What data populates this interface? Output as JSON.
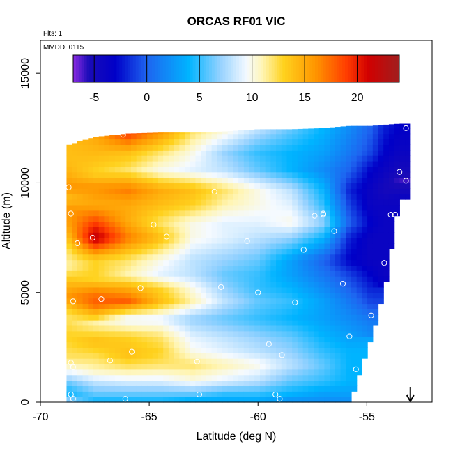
{
  "chart_data": {
    "type": "heatmap",
    "title": "ORCAS RF01 VIC",
    "annotations": {
      "flights": "Flts: 1",
      "date": "MMDD: 0115"
    },
    "xlabel": "Latitude (deg N)",
    "ylabel": "Altitude (m)",
    "xlim": [
      -70,
      -52
    ],
    "ylim": [
      0,
      16500
    ],
    "x_ticks": [
      -70,
      -65,
      -60,
      -55
    ],
    "x_tick_labels": [
      "-70",
      "-65",
      "-60",
      "-55"
    ],
    "y_ticks": [
      0,
      5000,
      10000,
      15000
    ],
    "y_tick_labels": [
      "0",
      "5000",
      "10000",
      "15000"
    ],
    "colorbar": {
      "range": [
        -7,
        24
      ],
      "ticks": [
        -5,
        0,
        5,
        10,
        15,
        20
      ],
      "tick_labels": [
        "-5",
        "0",
        "5",
        "10",
        "15",
        "20"
      ],
      "stops": [
        {
          "v": -7,
          "c": "#8a2be2"
        },
        {
          "v": -5.5,
          "c": "#1a0bb8"
        },
        {
          "v": -3,
          "c": "#0000c8"
        },
        {
          "v": 0,
          "c": "#1e64f0"
        },
        {
          "v": 4,
          "c": "#00b4ff"
        },
        {
          "v": 7,
          "c": "#96d2ff"
        },
        {
          "v": 9.5,
          "c": "#f5faff"
        },
        {
          "v": 11,
          "c": "#fff5b4"
        },
        {
          "v": 13,
          "c": "#ffd21e"
        },
        {
          "v": 16,
          "c": "#ff9600"
        },
        {
          "v": 19,
          "c": "#ff3c00"
        },
        {
          "v": 21,
          "c": "#d20000"
        },
        {
          "v": 24,
          "c": "#a01e1e"
        }
      ]
    },
    "arrow_x": -53.0,
    "field_profiles": [
      {
        "lat": -68.8,
        "z0": 0,
        "z1": 11700,
        "values": [
          [
            0,
            8
          ],
          [
            400,
            4
          ],
          [
            900,
            6
          ],
          [
            1500,
            10
          ],
          [
            2000,
            12
          ],
          [
            3000,
            13
          ],
          [
            4000,
            12
          ],
          [
            4800,
            16
          ],
          [
            5500,
            14
          ],
          [
            6200,
            11
          ],
          [
            7000,
            12
          ],
          [
            8000,
            15
          ],
          [
            8800,
            16
          ],
          [
            9300,
            14
          ],
          [
            9800,
            16
          ],
          [
            10300,
            15
          ],
          [
            11000,
            14
          ],
          [
            11700,
            14
          ]
        ]
      },
      {
        "lat": -67.5,
        "z0": 0,
        "z1": 12100,
        "values": [
          [
            0,
            4
          ],
          [
            400,
            6
          ],
          [
            900,
            8
          ],
          [
            1500,
            11
          ],
          [
            2000,
            12
          ],
          [
            2800,
            14
          ],
          [
            3600,
            11
          ],
          [
            4500,
            18
          ],
          [
            5000,
            17
          ],
          [
            5600,
            13
          ],
          [
            6500,
            13
          ],
          [
            7500,
            22
          ],
          [
            8200,
            19
          ],
          [
            9000,
            15
          ],
          [
            9800,
            16
          ],
          [
            10500,
            13
          ],
          [
            11200,
            14
          ],
          [
            12100,
            15
          ]
        ]
      },
      {
        "lat": -66.0,
        "z0": 0,
        "z1": 12250,
        "values": [
          [
            0,
            4
          ],
          [
            400,
            6
          ],
          [
            1000,
            9
          ],
          [
            1600,
            12
          ],
          [
            2200,
            14
          ],
          [
            3000,
            13
          ],
          [
            3800,
            9
          ],
          [
            4600,
            18
          ],
          [
            5200,
            15
          ],
          [
            5800,
            11
          ],
          [
            6500,
            12
          ],
          [
            7500,
            17
          ],
          [
            8300,
            15
          ],
          [
            9000,
            15
          ],
          [
            9700,
            17
          ],
          [
            10600,
            12
          ],
          [
            11400,
            14
          ],
          [
            12250,
            19
          ]
        ]
      },
      {
        "lat": -64.5,
        "z0": 0,
        "z1": 12300,
        "values": [
          [
            0,
            4
          ],
          [
            400,
            6
          ],
          [
            1000,
            9
          ],
          [
            1700,
            12
          ],
          [
            2300,
            13
          ],
          [
            3000,
            12
          ],
          [
            3800,
            9
          ],
          [
            4600,
            14
          ],
          [
            5200,
            13
          ],
          [
            5800,
            9
          ],
          [
            6500,
            10
          ],
          [
            7500,
            14
          ],
          [
            8200,
            12
          ],
          [
            9000,
            14
          ],
          [
            9700,
            15
          ],
          [
            10600,
            10
          ],
          [
            11400,
            12
          ],
          [
            12300,
            16
          ]
        ]
      },
      {
        "lat": -63.0,
        "z0": 0,
        "z1": 12300,
        "values": [
          [
            0,
            3
          ],
          [
            400,
            6
          ],
          [
            1000,
            10
          ],
          [
            1700,
            12
          ],
          [
            2300,
            10
          ],
          [
            3000,
            9
          ],
          [
            3800,
            7
          ],
          [
            4600,
            11
          ],
          [
            5200,
            10
          ],
          [
            5800,
            8
          ],
          [
            6500,
            8
          ],
          [
            7500,
            10
          ],
          [
            8200,
            10
          ],
          [
            9000,
            13
          ],
          [
            9700,
            14
          ],
          [
            10600,
            9
          ],
          [
            11400,
            10
          ],
          [
            12300,
            12
          ]
        ]
      },
      {
        "lat": -61.5,
        "z0": 0,
        "z1": 12350,
        "values": [
          [
            0,
            3
          ],
          [
            400,
            5
          ],
          [
            1000,
            9
          ],
          [
            1700,
            11
          ],
          [
            2300,
            9
          ],
          [
            3000,
            8
          ],
          [
            3800,
            6
          ],
          [
            4600,
            8
          ],
          [
            5200,
            7
          ],
          [
            5800,
            6
          ],
          [
            6500,
            7
          ],
          [
            7500,
            9
          ],
          [
            8200,
            9
          ],
          [
            9000,
            11
          ],
          [
            9700,
            12
          ],
          [
            10600,
            8
          ],
          [
            11400,
            7
          ],
          [
            12300,
            10
          ]
        ]
      },
      {
        "lat": -60.0,
        "z0": 0,
        "z1": 12450,
        "values": [
          [
            0,
            3
          ],
          [
            400,
            5
          ],
          [
            1000,
            8
          ],
          [
            1700,
            10
          ],
          [
            2300,
            8
          ],
          [
            3000,
            7
          ],
          [
            3800,
            5
          ],
          [
            4600,
            6
          ],
          [
            5200,
            5
          ],
          [
            5800,
            5
          ],
          [
            6500,
            6
          ],
          [
            7500,
            8
          ],
          [
            8200,
            9
          ],
          [
            9000,
            10
          ],
          [
            9700,
            10
          ],
          [
            10600,
            6
          ],
          [
            11400,
            5
          ],
          [
            12450,
            8
          ]
        ]
      },
      {
        "lat": -58.5,
        "z0": 0,
        "z1": 12450,
        "values": [
          [
            0,
            2
          ],
          [
            400,
            4
          ],
          [
            1000,
            6
          ],
          [
            1700,
            8
          ],
          [
            2300,
            7
          ],
          [
            3000,
            6
          ],
          [
            3800,
            4
          ],
          [
            4600,
            5
          ],
          [
            5200,
            4
          ],
          [
            5800,
            3
          ],
          [
            6500,
            3
          ],
          [
            7500,
            7
          ],
          [
            8200,
            10
          ],
          [
            9000,
            9
          ],
          [
            9700,
            8
          ],
          [
            10600,
            4
          ],
          [
            11400,
            4
          ],
          [
            12450,
            6
          ]
        ]
      },
      {
        "lat": -57.0,
        "z0": 0,
        "z1": 12500,
        "values": [
          [
            0,
            2
          ],
          [
            400,
            3
          ],
          [
            1000,
            5
          ],
          [
            1700,
            6
          ],
          [
            2300,
            5
          ],
          [
            3000,
            4
          ],
          [
            3800,
            3
          ],
          [
            4600,
            3
          ],
          [
            5200,
            2
          ],
          [
            5800,
            1
          ],
          [
            6500,
            0
          ],
          [
            7500,
            4
          ],
          [
            8200,
            7
          ],
          [
            9000,
            5
          ],
          [
            9700,
            4
          ],
          [
            10600,
            2
          ],
          [
            11400,
            3
          ],
          [
            12500,
            4
          ]
        ]
      },
      {
        "lat": -55.8,
        "z0": 0,
        "z1": 12600,
        "values": [
          [
            0,
            2
          ],
          [
            400,
            3
          ],
          [
            1000,
            4
          ],
          [
            1700,
            4
          ],
          [
            2300,
            4
          ],
          [
            3000,
            3
          ],
          [
            3800,
            2
          ],
          [
            4600,
            1
          ],
          [
            5200,
            0
          ],
          [
            5800,
            -1
          ],
          [
            6500,
            -3
          ],
          [
            7500,
            -2
          ],
          [
            8200,
            0
          ],
          [
            9000,
            -1
          ],
          [
            9700,
            -2
          ],
          [
            10600,
            0
          ],
          [
            11400,
            1
          ],
          [
            12600,
            2
          ]
        ]
      },
      {
        "lat": -54.8,
        "z0": 3000,
        "z1": 12600,
        "values": [
          [
            3000,
            2
          ],
          [
            3800,
            1
          ],
          [
            4600,
            -1
          ],
          [
            5200,
            -2
          ],
          [
            5800,
            -3
          ],
          [
            6500,
            -4
          ],
          [
            7500,
            -4
          ],
          [
            8200,
            -3
          ],
          [
            9000,
            -4
          ],
          [
            9700,
            -4
          ],
          [
            10600,
            -3
          ],
          [
            11400,
            -1
          ],
          [
            12600,
            0
          ]
        ]
      },
      {
        "lat": -54.2,
        "z0": 5200,
        "z1": 12650,
        "values": [
          [
            5200,
            -3
          ],
          [
            5800,
            -4
          ],
          [
            6500,
            -4
          ],
          [
            7500,
            -4
          ],
          [
            8200,
            -4
          ],
          [
            9000,
            -4
          ],
          [
            9700,
            -5
          ],
          [
            10600,
            -4
          ],
          [
            11400,
            -3
          ],
          [
            12650,
            -2
          ]
        ]
      },
      {
        "lat": -53.5,
        "z0": 9300,
        "z1": 12700,
        "values": [
          [
            9300,
            -4
          ],
          [
            9700,
            -5
          ],
          [
            10100,
            -6
          ],
          [
            10600,
            -5
          ],
          [
            11400,
            -4
          ],
          [
            12700,
            -3
          ]
        ]
      }
    ],
    "sample_points": [
      [
        -68.7,
        9800
      ],
      [
        -68.6,
        8600
      ],
      [
        -68.5,
        4600
      ],
      [
        -68.6,
        1800
      ],
      [
        -68.5,
        1600
      ],
      [
        -68.6,
        350
      ],
      [
        -68.5,
        150
      ],
      [
        -68.3,
        7250
      ],
      [
        -67.6,
        7500
      ],
      [
        -67.2,
        4700
      ],
      [
        -66.8,
        1900
      ],
      [
        -66.2,
        12200
      ],
      [
        -66.1,
        150
      ],
      [
        -65.8,
        2300
      ],
      [
        -65.4,
        5200
      ],
      [
        -64.8,
        8100
      ],
      [
        -64.2,
        7550
      ],
      [
        -62.8,
        1850
      ],
      [
        -62.7,
        350
      ],
      [
        -62.0,
        9600
      ],
      [
        -61.7,
        5250
      ],
      [
        -60.5,
        7350
      ],
      [
        -60.0,
        5000
      ],
      [
        -59.5,
        2650
      ],
      [
        -59.2,
        350
      ],
      [
        -59.0,
        150
      ],
      [
        -58.9,
        2150
      ],
      [
        -58.3,
        4550
      ],
      [
        -57.9,
        6950
      ],
      [
        -57.4,
        8500
      ],
      [
        -57.0,
        8600
      ],
      [
        -57.0,
        8550
      ],
      [
        -56.5,
        7800
      ],
      [
        -56.1,
        5400
      ],
      [
        -55.8,
        3000
      ],
      [
        -55.5,
        1500
      ],
      [
        -55.1,
        600
      ],
      [
        -55.0,
        200
      ],
      [
        -54.8,
        3950
      ],
      [
        -54.2,
        6350
      ],
      [
        -53.9,
        8550
      ],
      [
        -53.7,
        8550
      ],
      [
        -53.5,
        10500
      ],
      [
        -53.2,
        12500
      ],
      [
        -53.2,
        10100
      ]
    ]
  }
}
